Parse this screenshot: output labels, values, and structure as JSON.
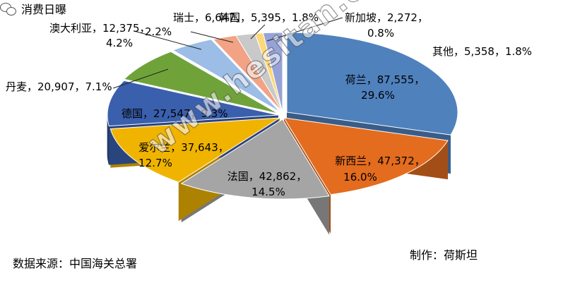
{
  "chart_data": {
    "type": "pie",
    "style": "3d-exploded",
    "slices": [
      {
        "name": "荷兰",
        "value_text": "87,555",
        "pct_text": "29.6%",
        "value": 87555,
        "pct": 29.6,
        "color": "#4F81BD"
      },
      {
        "name": "新西兰",
        "value_text": "47,372",
        "pct_text": "16.0%",
        "value": 47372,
        "pct": 16.0,
        "color": "#E36C1E"
      },
      {
        "name": "法国",
        "value_text": "42,862",
        "pct_text": "14.5%",
        "value": 42862,
        "pct": 14.5,
        "color": "#A5A5A5"
      },
      {
        "name": "爱尔兰",
        "value_text": "37,643",
        "pct_text": "12.7%",
        "value": 37643,
        "pct": 12.7,
        "color": "#F0B400"
      },
      {
        "name": "德国",
        "value_text": "27,547",
        "pct_text": "9.3%",
        "value": 27547,
        "pct": 9.3,
        "color": "#3A5FAD"
      },
      {
        "name": "丹麦",
        "value_text": "20,907",
        "pct_text": "7.1%",
        "value": 20907,
        "pct": 7.1,
        "color": "#6FA33A"
      },
      {
        "name": "澳大利亚",
        "value_text": "12,375",
        "pct_text": "4.2%",
        "value": 12375,
        "pct": 4.2,
        "color": "#9BBDE6"
      },
      {
        "name": "瑞士",
        "value_text": "6,647",
        "pct_text": "2.2%",
        "value": 6647,
        "pct": 2.2,
        "color": "#F2A285"
      },
      {
        "name": "韩国",
        "value_text": "5,395",
        "pct_text": "1.8%",
        "value": 5395,
        "pct": 1.8,
        "color": "#C9C9C9"
      },
      {
        "name": "新加坡",
        "value_text": "2,272",
        "pct_text": "0.8%",
        "value": 2272,
        "pct": 0.8,
        "color": "#FFD877"
      },
      {
        "name": "其他",
        "value_text": "5,358",
        "pct_text": "1.8%",
        "value": 5358,
        "pct": 1.8,
        "color": "#95A3D8"
      }
    ]
  },
  "footer": {
    "source": "数据来源：中国海关总署",
    "maker": "制作：荷斯坦",
    "brand": "消费日曝"
  },
  "watermark": "www.hesitan.com"
}
